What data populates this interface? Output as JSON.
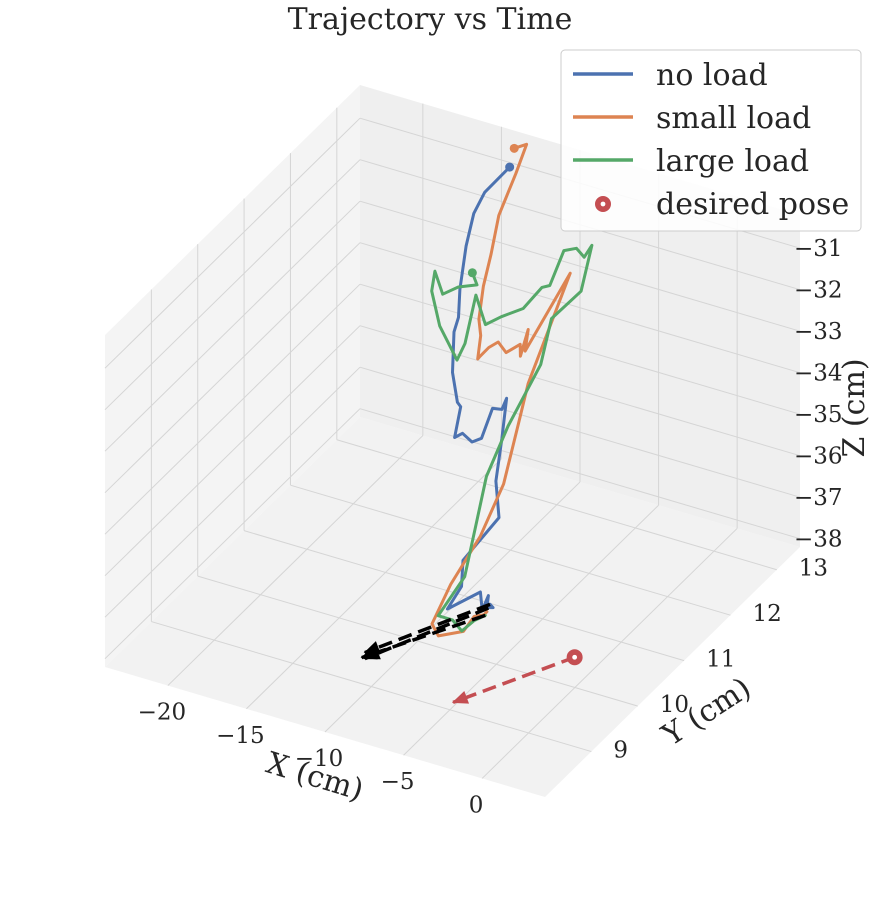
{
  "chart_data": {
    "type": "line3d",
    "title": "Trajectory vs Time",
    "xlabel": "X (cm)",
    "ylabel": "Y (cm)",
    "zlabel": "Z (cm)",
    "xlim": [
      -24,
      4
    ],
    "ylim": [
      8,
      13.5
    ],
    "zlim": [
      -38.2,
      -30.2
    ],
    "xticks": [
      -20,
      -15,
      -10,
      -5,
      0
    ],
    "yticks": [
      9,
      10,
      11,
      12,
      13
    ],
    "zticks": [
      -31,
      -32,
      -33,
      -34,
      -35,
      -36,
      -37,
      -38
    ],
    "xtick_labels": [
      "−20",
      "−15",
      "−10",
      "−5",
      "0"
    ],
    "ytick_labels": [
      "9",
      "10",
      "11",
      "12",
      "13"
    ],
    "ztick_labels": [
      "−31",
      "−32",
      "−33",
      "−34",
      "−35",
      "−36",
      "−37",
      "−38"
    ],
    "grid": true,
    "legend_position": "top-right",
    "series": [
      {
        "name": "no load",
        "color": "#4c72b0",
        "points": [
          [
            -13.0,
            13.0,
            -30.4
          ],
          [
            -14.0,
            12.8,
            -30.9
          ],
          [
            -14.1,
            12.6,
            -31.2
          ],
          [
            -14.3,
            12.5,
            -31.9
          ],
          [
            -14.1,
            12.3,
            -32.7
          ],
          [
            -13.6,
            12.1,
            -33.1
          ],
          [
            -13.3,
            11.9,
            -33.2
          ],
          [
            -12.8,
            11.7,
            -33.9
          ],
          [
            -11.9,
            11.5,
            -34.3
          ],
          [
            -11.1,
            11.3,
            -34.1
          ],
          [
            -10.9,
            11.1,
            -34.6
          ],
          [
            -10.1,
            11.0,
            -34.3
          ],
          [
            -9.2,
            10.9,
            -34.3
          ],
          [
            -8.3,
            10.8,
            -34.0
          ],
          [
            -7.6,
            10.8,
            -33.2
          ],
          [
            -7.3,
            10.9,
            -33.3
          ],
          [
            -7.0,
            10.9,
            -33.0
          ],
          [
            -7.3,
            10.9,
            -34.0
          ],
          [
            -6.5,
            10.5,
            -34.5
          ],
          [
            -6.6,
            10.6,
            -35.5
          ],
          [
            -8.3,
            10.4,
            -36.5
          ],
          [
            -8.1,
            10.3,
            -37.0
          ],
          [
            -8.7,
            10.2,
            -37.5
          ],
          [
            -6.9,
            10.3,
            -37.0
          ],
          [
            -5.9,
            10.0,
            -37.0
          ],
          [
            -5.5,
            10.0,
            -36.6
          ],
          [
            -5.6,
            10.0,
            -36.9
          ],
          [
            -5.5,
            10.1,
            -37.0
          ],
          [
            -5.4,
            10.0,
            -36.8
          ]
        ]
      },
      {
        "name": "small load",
        "color": "#dd8452",
        "points": [
          [
            -13.3,
            13.2,
            -30.2
          ],
          [
            -13.1,
            13.4,
            -30.3
          ],
          [
            -13.2,
            13.2,
            -30.8
          ],
          [
            -13.4,
            12.9,
            -31.5
          ],
          [
            -13.3,
            12.7,
            -32.2
          ],
          [
            -12.9,
            12.4,
            -32.6
          ],
          [
            -12.3,
            12.1,
            -33.0
          ],
          [
            -11.6,
            11.9,
            -33.1
          ],
          [
            -11.2,
            11.7,
            -33.4
          ],
          [
            -10.8,
            11.6,
            -33.2
          ],
          [
            -10.2,
            11.6,
            -32.9
          ],
          [
            -9.6,
            11.6,
            -32.7
          ],
          [
            -9.1,
            11.6,
            -32.9
          ],
          [
            -8.2,
            11.6,
            -32.6
          ],
          [
            -7.6,
            11.4,
            -32.6
          ],
          [
            -7.1,
            11.4,
            -31.9
          ],
          [
            -7.0,
            11.3,
            -32.3
          ],
          [
            -6.2,
            12.0,
            -31.1
          ],
          [
            -7.1,
            11.4,
            -33.2
          ],
          [
            -6.5,
            11.0,
            -33.6
          ],
          [
            -6.6,
            10.7,
            -34.8
          ],
          [
            -7.2,
            10.4,
            -35.8
          ],
          [
            -7.9,
            10.0,
            -36.6
          ],
          [
            -8.5,
            9.8,
            -37.4
          ],
          [
            -7.8,
            9.7,
            -37.5
          ],
          [
            -6.8,
            9.9,
            -37.5
          ],
          [
            -6.4,
            10.0,
            -37.2
          ],
          [
            -5.8,
            10.0,
            -37.1
          ],
          [
            -5.6,
            10.0,
            -37.0
          ]
        ]
      },
      {
        "name": "large load",
        "color": "#55a868",
        "points": [
          [
            -13.9,
            12.5,
            -32.5
          ],
          [
            -13.9,
            12.6,
            -32.9
          ],
          [
            -14.5,
            12.4,
            -32.8
          ],
          [
            -14.9,
            12.2,
            -32.8
          ],
          [
            -15.4,
            12.2,
            -32.3
          ],
          [
            -15.6,
            12.2,
            -32.8
          ],
          [
            -14.5,
            12.0,
            -33.3
          ],
          [
            -13.4,
            12.0,
            -34.0
          ],
          [
            -12.6,
            11.9,
            -33.4
          ],
          [
            -12.2,
            12.0,
            -32.3
          ],
          [
            -11.3,
            11.9,
            -32.8
          ],
          [
            -10.3,
            11.9,
            -32.5
          ],
          [
            -8.6,
            11.8,
            -32.0
          ],
          [
            -7.7,
            11.9,
            -31.5
          ],
          [
            -7.2,
            11.9,
            -31.4
          ],
          [
            -6.6,
            12.0,
            -30.6
          ],
          [
            -6.1,
            12.1,
            -30.6
          ],
          [
            -5.9,
            12.2,
            -30.9
          ],
          [
            -5.7,
            12.3,
            -30.7
          ],
          [
            -5.8,
            12.1,
            -31.6
          ],
          [
            -6.5,
            11.7,
            -31.9
          ],
          [
            -6.6,
            11.5,
            -32.8
          ],
          [
            -7.2,
            11.0,
            -33.8
          ],
          [
            -7.4,
            10.6,
            -34.6
          ],
          [
            -7.5,
            10.4,
            -35.6
          ],
          [
            -7.6,
            10.2,
            -36.6
          ],
          [
            -8.4,
            9.9,
            -37.3
          ],
          [
            -7.5,
            9.9,
            -37.3
          ],
          [
            -6.9,
            9.9,
            -37.5
          ],
          [
            -6.4,
            10.0,
            -37.3
          ],
          [
            -5.7,
            10.0,
            -37.1
          ]
        ]
      }
    ],
    "dashed_arrows": [
      {
        "color": "#000000",
        "from": [
          -5.4,
          10.0,
          -36.8
        ],
        "to": [
          -11.6,
          9.4,
          -38.0
        ]
      },
      {
        "color": "#000000",
        "from": [
          -5.5,
          10.0,
          -36.9
        ],
        "to": [
          -11.3,
          9.3,
          -38.0
        ]
      },
      {
        "color": "#000000",
        "from": [
          -5.7,
          10.0,
          -37.1
        ],
        "to": [
          -11.5,
          9.3,
          -38.0
        ]
      },
      {
        "color": "#c44e52",
        "from": [
          -0.9,
          10.3,
          -37.9
        ],
        "to": [
          -4.8,
          9.0,
          -38.0
        ]
      }
    ],
    "start_markers": [
      {
        "color": "#4c72b0",
        "point": [
          -13.0,
          13.0,
          -30.4
        ]
      },
      {
        "color": "#dd8452",
        "point": [
          -13.3,
          13.2,
          -30.2
        ]
      },
      {
        "color": "#55a868",
        "point": [
          -13.9,
          12.5,
          -32.5
        ]
      }
    ],
    "desired_pose": {
      "name": "desired pose",
      "color": "#c44e52",
      "point": [
        -0.9,
        10.3,
        -37.9
      ]
    }
  }
}
